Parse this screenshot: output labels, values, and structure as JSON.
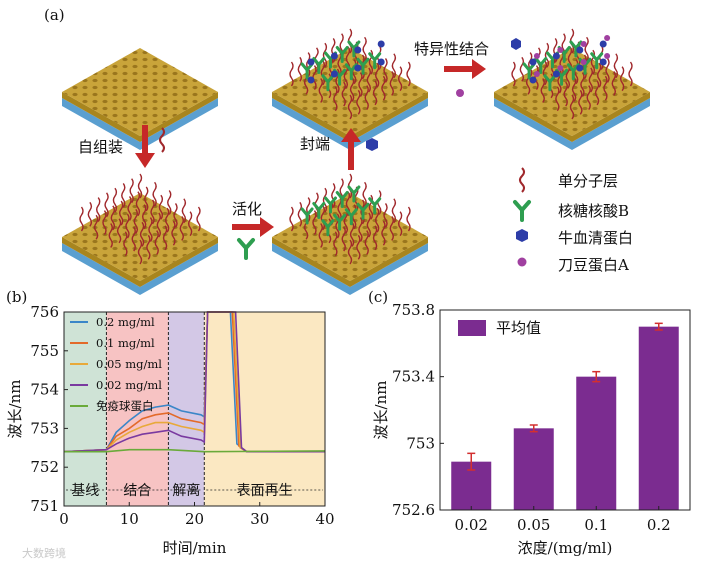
{
  "panel_a": {
    "tag": "(a)",
    "step_labels": {
      "self_assembly": "自组装",
      "activation": "活化",
      "blocking": "封端",
      "specific_binding": "特异性结合"
    },
    "legend": [
      {
        "icon": "wavy-line-icon",
        "label": "单分子层"
      },
      {
        "icon": "antibody-y-icon",
        "label": "核糖核酸B"
      },
      {
        "icon": "hexagon-icon",
        "label": "牛血清蛋白"
      },
      {
        "icon": "dot-icon",
        "label": "刀豆蛋白A"
      }
    ],
    "colors": {
      "gold": "#c9a43a",
      "blue_base": "#5a9fd0",
      "antibody": "#2e9e50",
      "bsa": "#2d3da8",
      "cona": "#a040a0",
      "arrow": "#c62828",
      "monolayer": "#a0282c"
    }
  },
  "panel_b": {
    "tag": "(b)",
    "chart_data": {
      "type": "line",
      "xlabel": "时间/min",
      "ylabel": "波长/nm",
      "xlim": [
        0,
        40
      ],
      "ylim": [
        751,
        756
      ],
      "xticks": [
        "0",
        "10",
        "20",
        "30",
        "40"
      ],
      "yticks": [
        "751",
        "752",
        "753",
        "754",
        "755",
        "756"
      ],
      "regions": [
        {
          "label": "基线",
          "x": [
            0,
            6.5
          ],
          "color": "#cfe3d6"
        },
        {
          "label": "结合",
          "x": [
            6.5,
            16
          ],
          "color": "#f7c3c3"
        },
        {
          "label": "解离",
          "x": [
            16,
            21.5
          ],
          "color": "#d3c8e6"
        },
        {
          "label": "表面再生",
          "x": [
            21.5,
            40
          ],
          "color": "#fbe8c2"
        }
      ],
      "series": [
        {
          "name": "0.2 mg/ml",
          "color": "#3a86c8",
          "points": [
            [
              0,
              752.4
            ],
            [
              6.5,
              752.45
            ],
            [
              8,
              752.9
            ],
            [
              10,
              753.2
            ],
            [
              12,
              753.45
            ],
            [
              14,
              753.55
            ],
            [
              16,
              753.6
            ],
            [
              18,
              753.45
            ],
            [
              21,
              753.35
            ],
            [
              21.5,
              753.3
            ],
            [
              22,
              756
            ],
            [
              25.5,
              756
            ],
            [
              26.5,
              752.6
            ],
            [
              28,
              752.4
            ],
            [
              40,
              752.4
            ]
          ]
        },
        {
          "name": "0.1 mg/ml",
          "color": "#e36a2a",
          "points": [
            [
              0,
              752.4
            ],
            [
              6.5,
              752.45
            ],
            [
              8,
              752.8
            ],
            [
              10,
              753.0
            ],
            [
              12,
              753.25
            ],
            [
              14,
              753.35
            ],
            [
              16,
              753.4
            ],
            [
              18,
              753.25
            ],
            [
              21,
              753.15
            ],
            [
              21.5,
              753.1
            ],
            [
              22,
              756
            ],
            [
              25.8,
              756
            ],
            [
              26.8,
              752.55
            ],
            [
              28,
              752.4
            ],
            [
              40,
              752.4
            ]
          ]
        },
        {
          "name": "0.05 mg/ml",
          "color": "#e8a93a",
          "points": [
            [
              0,
              752.4
            ],
            [
              6.5,
              752.45
            ],
            [
              8,
              752.7
            ],
            [
              10,
              752.9
            ],
            [
              12,
              753.05
            ],
            [
              14,
              753.15
            ],
            [
              16,
              753.15
            ],
            [
              18,
              753.05
            ],
            [
              21,
              752.95
            ],
            [
              21.5,
              752.9
            ],
            [
              22,
              756
            ],
            [
              26,
              756
            ],
            [
              27,
              752.5
            ],
            [
              28,
              752.4
            ],
            [
              40,
              752.4
            ]
          ]
        },
        {
          "name": "0.02 mg/ml",
          "color": "#7a3aa0",
          "points": [
            [
              0,
              752.4
            ],
            [
              6.5,
              752.45
            ],
            [
              8,
              752.6
            ],
            [
              10,
              752.75
            ],
            [
              12,
              752.85
            ],
            [
              14,
              752.9
            ],
            [
              16,
              752.95
            ],
            [
              18,
              752.8
            ],
            [
              21,
              752.7
            ],
            [
              21.5,
              752.65
            ],
            [
              22,
              756
            ],
            [
              26.3,
              756
            ],
            [
              27.2,
              752.5
            ],
            [
              28,
              752.4
            ],
            [
              40,
              752.4
            ]
          ]
        },
        {
          "name": "免疫球蛋白",
          "color": "#6aaa3a",
          "points": [
            [
              0,
              752.4
            ],
            [
              6.5,
              752.4
            ],
            [
              10,
              752.45
            ],
            [
              16,
              752.45
            ],
            [
              21.5,
              752.4
            ],
            [
              40,
              752.42
            ]
          ]
        }
      ]
    }
  },
  "panel_c": {
    "tag": "(c)",
    "chart_data": {
      "type": "bar",
      "categories": [
        "0.02",
        "0.05",
        "0.1",
        "0.2"
      ],
      "values": [
        752.89,
        753.09,
        753.4,
        753.7
      ],
      "errors": [
        0.05,
        0.02,
        0.03,
        0.02
      ],
      "series": [
        {
          "name": "平均值",
          "values": [
            752.89,
            753.09,
            753.4,
            753.7
          ]
        }
      ],
      "xlabel": "浓度/(mg/ml)",
      "ylabel": "波长/nm",
      "ylim": [
        752.6,
        753.8
      ],
      "yticks": [
        "752.6",
        "753",
        "753.4",
        "753.8"
      ],
      "bar_color": "#7b2c90",
      "error_color": "#d32f2f",
      "legend_position": "top-left"
    }
  },
  "watermark": "大数跨境"
}
